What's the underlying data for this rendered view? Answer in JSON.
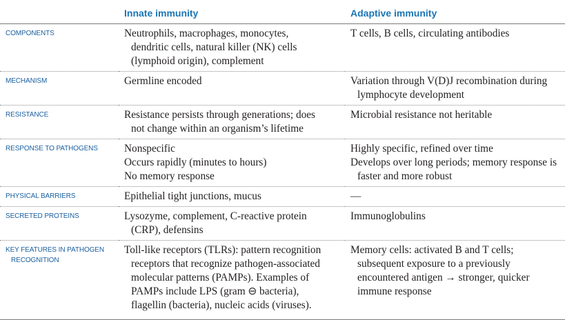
{
  "table": {
    "headers": [
      "",
      "Innate immunity",
      "Adaptive immunity"
    ],
    "rows": [
      {
        "label": [
          "Components"
        ],
        "innate": [
          {
            "text": "Neutrophils, macrophages, monocytes,",
            "indent": false
          },
          {
            "text": "dendritic cells, natural killer (NK) cells",
            "indent": true
          },
          {
            "text": "(lymphoid origin), complement",
            "indent": true
          }
        ],
        "adaptive": [
          {
            "text": "T cells, B cells, circulating antibodies",
            "indent": false
          }
        ]
      },
      {
        "label": [
          "Mechanism"
        ],
        "innate": [
          {
            "text": "Germline encoded",
            "indent": false
          }
        ],
        "adaptive": [
          {
            "text": "Variation through V(D)J recombination during",
            "indent": false
          },
          {
            "text": "lymphocyte development",
            "indent": true
          }
        ]
      },
      {
        "label": [
          "Resistance"
        ],
        "innate": [
          {
            "text": "Resistance persists through generations; does",
            "indent": false
          },
          {
            "text": "not change within an organism’s lifetime",
            "indent": true
          }
        ],
        "adaptive": [
          {
            "text": "Microbial resistance not heritable",
            "indent": false
          }
        ]
      },
      {
        "label": [
          "Response to pathogens"
        ],
        "innate": [
          {
            "text": "Nonspecific",
            "indent": false
          },
          {
            "text": "Occurs rapidly (minutes to hours)",
            "indent": false
          },
          {
            "text": "No memory response",
            "indent": false
          }
        ],
        "adaptive": [
          {
            "text": "Highly specific, refined over time",
            "indent": false
          },
          {
            "text": "Develops over long periods; memory response is",
            "indent": false
          },
          {
            "text": "faster and more robust",
            "indent": true
          }
        ]
      },
      {
        "label": [
          "Physical barriers"
        ],
        "innate": [
          {
            "text": "Epithelial tight junctions, mucus",
            "indent": false
          }
        ],
        "adaptive": [
          {
            "text": "—",
            "indent": false
          }
        ]
      },
      {
        "label": [
          "Secreted proteins"
        ],
        "innate": [
          {
            "text": "Lysozyme, complement, C-reactive protein",
            "indent": false
          },
          {
            "text": "(CRP), defensins",
            "indent": true
          }
        ],
        "adaptive": [
          {
            "text": "Immunoglobulins",
            "indent": false
          }
        ]
      },
      {
        "label": [
          "Key features in pathogen",
          "recognition"
        ],
        "innate": [
          {
            "text": "Toll-like receptors (TLRs): pattern recognition",
            "indent": false
          },
          {
            "text": "receptors that recognize pathogen-associated",
            "indent": true
          },
          {
            "text": "molecular patterns (PAMPs). Examples of",
            "indent": true
          },
          {
            "text": "PAMPs include LPS (gram ⊖ bacteria),",
            "indent": true
          },
          {
            "text": "flagellin (bacteria), nucleic acids (viruses).",
            "indent": true
          }
        ],
        "adaptive": [
          {
            "text": "Memory cells: activated B and T cells;",
            "indent": false
          },
          {
            "text": "subsequent exposure to a previously",
            "indent": true
          },
          {
            "text": "encountered antigen → stronger, quicker",
            "indent": true
          },
          {
            "text": "immune response",
            "indent": true
          }
        ]
      }
    ]
  },
  "colors": {
    "header_text": "#1a75b5",
    "row_label_text": "#1a5fa0",
    "body_text": "#231f20",
    "rule": "#7a7a7a"
  }
}
